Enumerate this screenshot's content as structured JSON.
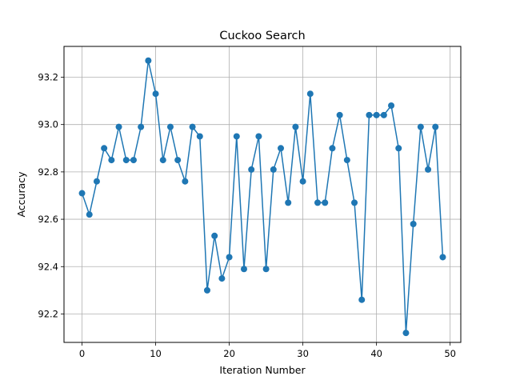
{
  "chart_data": {
    "type": "line",
    "title": "Cuckoo Search",
    "xlabel": "Iteration Number",
    "ylabel": "Accuracy",
    "xlim": [
      -2.45,
      51.45
    ],
    "ylim": [
      92.08,
      93.33
    ],
    "grid": true,
    "marker": "circle",
    "color": "#1f77b4",
    "xticks": [
      0,
      10,
      20,
      30,
      40,
      50
    ],
    "yticks": [
      92.2,
      92.4,
      92.6,
      92.8,
      93.0,
      93.2
    ],
    "ytick_labels": [
      "92.2",
      "92.4",
      "92.6",
      "92.8",
      "93.0",
      "93.2"
    ],
    "x": [
      0,
      1,
      2,
      3,
      4,
      5,
      6,
      7,
      8,
      9,
      10,
      11,
      12,
      13,
      14,
      15,
      16,
      17,
      18,
      19,
      20,
      21,
      22,
      23,
      24,
      25,
      26,
      27,
      28,
      29,
      30,
      31,
      32,
      33,
      34,
      35,
      36,
      37,
      38,
      39,
      40,
      41,
      42,
      43,
      44,
      45,
      46,
      47,
      48,
      49
    ],
    "series": [
      {
        "values": [
          92.71,
          92.62,
          92.76,
          92.9,
          92.85,
          92.99,
          92.85,
          92.85,
          92.99,
          93.27,
          93.13,
          92.85,
          92.99,
          92.85,
          92.76,
          92.99,
          92.95,
          92.3,
          92.53,
          92.35,
          92.44,
          92.95,
          92.39,
          92.81,
          92.95,
          92.39,
          92.81,
          92.9,
          92.67,
          92.99,
          92.76,
          93.13,
          92.67,
          92.67,
          92.9,
          93.04,
          92.85,
          92.67,
          92.26,
          93.04,
          93.04,
          93.04,
          93.08,
          92.9,
          92.12,
          92.58,
          92.99,
          92.81,
          92.99,
          92.44
        ]
      }
    ]
  }
}
